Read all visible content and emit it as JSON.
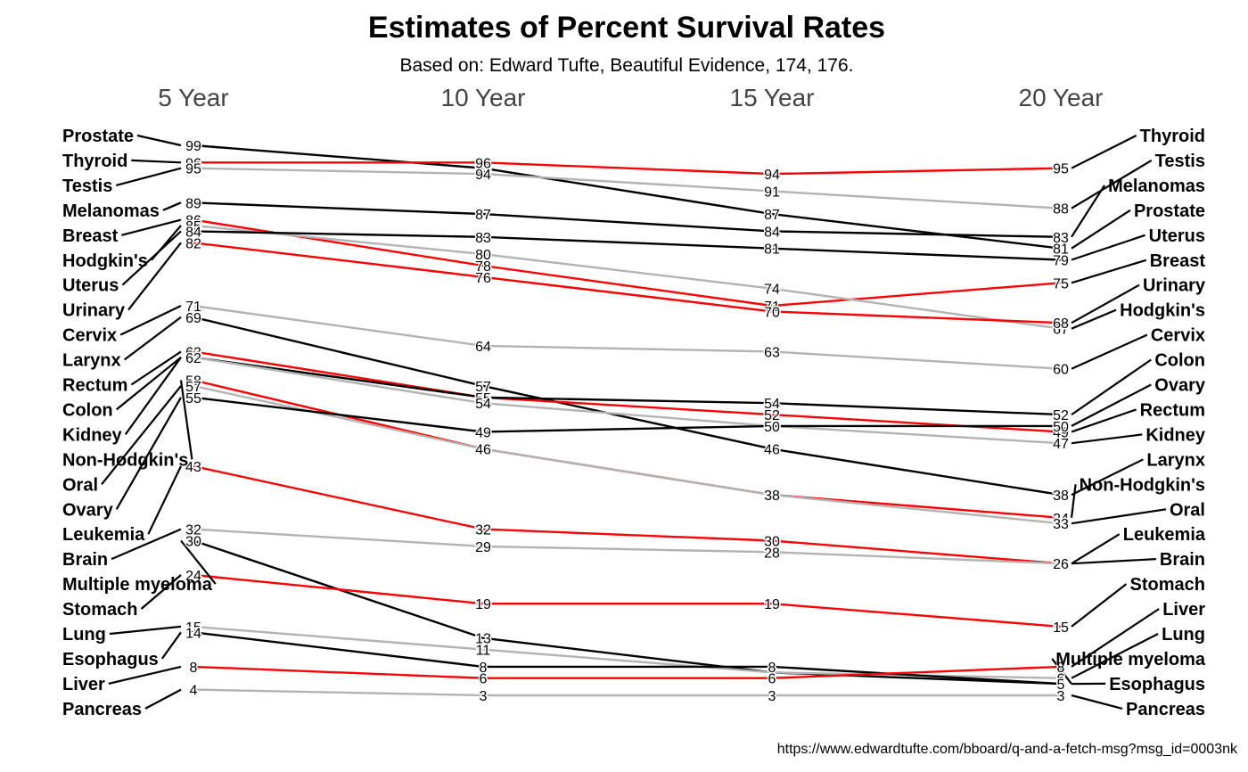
{
  "chart_data": {
    "type": "line",
    "title": "Estimates of Percent Survival Rates",
    "subtitle": "Based on: Edward Tufte, Beautiful Evidence, 174, 176.",
    "caption": "https://www.edwardtufte.com/bboard/q-and-a-fetch-msg?msg_id=0003nk",
    "x": [
      "5 Year",
      "10 Year",
      "15 Year",
      "20 Year"
    ],
    "ylim": [
      3,
      99
    ],
    "grid": false,
    "legend": "none",
    "series": [
      {
        "name": "Prostate",
        "values": [
          99,
          95,
          87,
          81
        ],
        "color": "#000000"
      },
      {
        "name": "Thyroid",
        "values": [
          96,
          96,
          94,
          95
        ],
        "color": "#ff0000"
      },
      {
        "name": "Testis",
        "values": [
          95,
          94,
          91,
          88
        ],
        "color": "#b3b3b3"
      },
      {
        "name": "Melanomas",
        "values": [
          89,
          87,
          84,
          83
        ],
        "color": "#000000"
      },
      {
        "name": "Breast",
        "values": [
          86,
          78,
          71,
          75
        ],
        "color": "#ff0000"
      },
      {
        "name": "Hodgkin's",
        "values": [
          85,
          80,
          74,
          67
        ],
        "color": "#b3b3b3"
      },
      {
        "name": "Uterus",
        "values": [
          84,
          83,
          81,
          79
        ],
        "color": "#000000"
      },
      {
        "name": "Urinary",
        "values": [
          82,
          76,
          70,
          68
        ],
        "color": "#ff0000"
      },
      {
        "name": "Cervix",
        "values": [
          71,
          64,
          63,
          60
        ],
        "color": "#b3b3b3"
      },
      {
        "name": "Larynx",
        "values": [
          69,
          57,
          46,
          38
        ],
        "color": "#000000"
      },
      {
        "name": "Rectum",
        "values": [
          63,
          55,
          52,
          49
        ],
        "color": "#ff0000"
      },
      {
        "name": "Colon",
        "values": [
          62,
          55,
          54,
          52
        ],
        "color": "#000000"
      },
      {
        "name": "Kidney",
        "values": [
          62,
          54,
          50,
          47
        ],
        "color": "#b3b3b3"
      },
      {
        "name": "Non-Hodgkin's",
        "values": [
          58,
          46,
          38,
          34
        ],
        "color": "#ff0000"
      },
      {
        "name": "Oral",
        "values": [
          57,
          46,
          38,
          33
        ],
        "color": "#b3b3b3"
      },
      {
        "name": "Ovary",
        "values": [
          55,
          49,
          50,
          50
        ],
        "color": "#000000"
      },
      {
        "name": "Leukemia",
        "values": [
          43,
          32,
          30,
          26
        ],
        "color": "#ff0000"
      },
      {
        "name": "Brain",
        "values": [
          32,
          29,
          28,
          26
        ],
        "color": "#b3b3b3"
      },
      {
        "name": "Multiple myeloma",
        "values": [
          30,
          13,
          7,
          5
        ],
        "color": "#000000"
      },
      {
        "name": "Stomach",
        "values": [
          24,
          19,
          19,
          15
        ],
        "color": "#ff0000"
      },
      {
        "name": "Lung",
        "values": [
          15,
          11,
          7,
          6
        ],
        "color": "#b3b3b3"
      },
      {
        "name": "Esophagus",
        "values": [
          14,
          8,
          8,
          5
        ],
        "color": "#000000"
      },
      {
        "name": "Liver",
        "values": [
          8,
          6,
          6,
          8
        ],
        "color": "#ff0000"
      },
      {
        "name": "Pancreas",
        "values": [
          4,
          3,
          3,
          3
        ],
        "color": "#b3b3b3"
      }
    ],
    "left_order": [
      "Prostate",
      "Thyroid",
      "Testis",
      "Melanomas",
      "Breast",
      "Hodgkin's",
      "Uterus",
      "Urinary",
      "Cervix",
      "Larynx",
      "Rectum",
      "Colon",
      "Kidney",
      "Non-Hodgkin's",
      "Oral",
      "Ovary",
      "Leukemia",
      "Brain",
      "Multiple myeloma",
      "Stomach",
      "Lung",
      "Esophagus",
      "Liver",
      "Pancreas"
    ],
    "right_order": [
      "Thyroid",
      "Testis",
      "Melanomas",
      "Prostate",
      "Uterus",
      "Breast",
      "Urinary",
      "Hodgkin's",
      "Cervix",
      "Colon",
      "Ovary",
      "Rectum",
      "Kidney",
      "Larynx",
      "Non-Hodgkin's",
      "Oral",
      "Leukemia",
      "Brain",
      "Stomach",
      "Liver",
      "Lung",
      "Multiple myeloma",
      "Esophagus",
      "Pancreas"
    ]
  }
}
